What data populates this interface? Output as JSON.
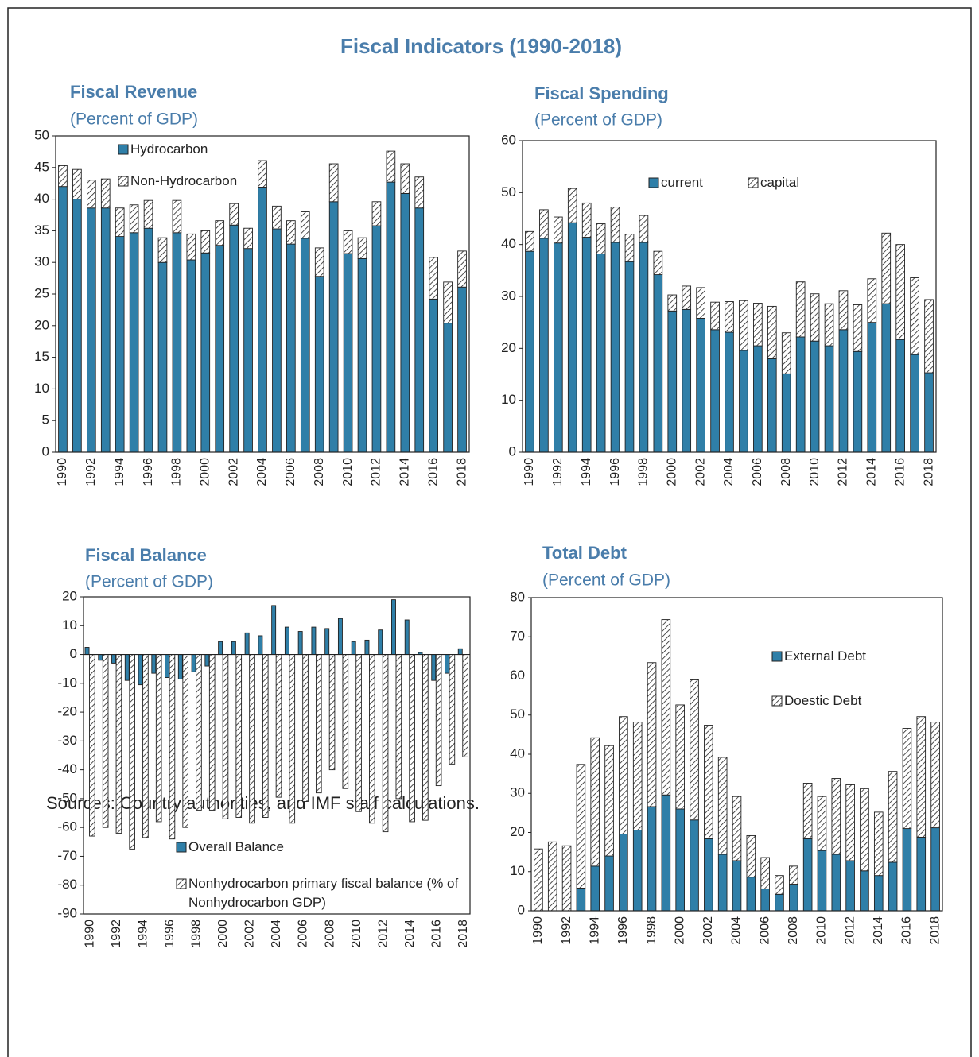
{
  "title": "Fiscal Indicators (1990-2018)",
  "source": "Sources: Country authorities, and IMF staff calculations.",
  "chart_data": [
    {
      "type": "bar",
      "stacked": true,
      "title": "Fiscal Revenue",
      "subtitle": "(Percent of GDP)",
      "categories": [
        "1990",
        null,
        "1992",
        null,
        "1994",
        null,
        "1996",
        null,
        "1998",
        null,
        "2000",
        null,
        "2002",
        null,
        "2004",
        null,
        "2006",
        null,
        "2008",
        null,
        "2010",
        null,
        "2012",
        null,
        "2014",
        null,
        "2016",
        null,
        "2018"
      ],
      "series": [
        {
          "name": "Hydrocarbon",
          "color": "#2f7fa8",
          "values": [
            42,
            40,
            38.6,
            38.6,
            34.1,
            34.7,
            35.4,
            30,
            34.7,
            30.4,
            31.5,
            32.7,
            35.9,
            32.2,
            41.9,
            35.3,
            32.9,
            33.8,
            27.8,
            39.6,
            31.4,
            30.6,
            35.8,
            42.7,
            40.9,
            38.6,
            24.2,
            20.4,
            26.1
          ]
        },
        {
          "name": "Non-Hydrocarbon",
          "color": "#ffffff",
          "hatch": true,
          "values": [
            3.3,
            4.7,
            4.4,
            4.6,
            4.5,
            4.4,
            4.4,
            3.9,
            5.1,
            4.1,
            3.5,
            3.9,
            3.4,
            3.2,
            4.2,
            3.6,
            3.7,
            4.2,
            4.5,
            6,
            3.6,
            3.3,
            3.8,
            4.9,
            4.7,
            4.9,
            6.6,
            6.5,
            5.7
          ]
        }
      ],
      "ylim": [
        0,
        50
      ],
      "yticks": [
        0,
        5,
        10,
        15,
        20,
        25,
        30,
        35,
        40,
        45,
        50
      ]
    },
    {
      "type": "bar",
      "stacked": true,
      "title": "Fiscal Spending",
      "subtitle": "(Percent of GDP)",
      "categories": [
        "1990",
        null,
        "1992",
        null,
        "1994",
        null,
        "1996",
        null,
        "1998",
        null,
        "2000",
        null,
        "2002",
        null,
        "2004",
        null,
        "2006",
        null,
        "2008",
        null,
        "2010",
        null,
        "2012",
        null,
        "2014",
        null,
        "2016",
        null,
        "2018"
      ],
      "series": [
        {
          "name": "current",
          "color": "#2f7fa8",
          "values": [
            38.7,
            41.2,
            40.3,
            44.2,
            41.4,
            38.2,
            40.4,
            36.7,
            40.4,
            34.2,
            27.2,
            27.5,
            25.8,
            23.6,
            23.1,
            19.6,
            20.5,
            18,
            15.1,
            22.2,
            21.4,
            20.5,
            23.6,
            19.4,
            25,
            28.6,
            21.7,
            18.8,
            15.3
          ]
        },
        {
          "name": "capital",
          "color": "#ffffff",
          "hatch": true,
          "values": [
            3.8,
            5.5,
            5,
            6.6,
            6.6,
            5.8,
            6.8,
            5.3,
            5.2,
            4.5,
            3.1,
            4.5,
            5.9,
            5.3,
            5.9,
            9.6,
            8.2,
            10.1,
            7.9,
            10.6,
            9.1,
            8.1,
            7.5,
            9,
            8.4,
            13.6,
            18.3,
            14.8,
            14.1
          ]
        }
      ],
      "ylim": [
        0,
        60
      ],
      "yticks": [
        0,
        10,
        20,
        30,
        40,
        50,
        60
      ]
    },
    {
      "type": "bar",
      "stacked": false,
      "title": "Fiscal Balance",
      "subtitle": "(Percent of GDP)",
      "categories": [
        "1990",
        null,
        "1992",
        null,
        "1994",
        null,
        "1996",
        null,
        "1998",
        null,
        "2000",
        null,
        "2002",
        null,
        "2004",
        null,
        "2006",
        null,
        "2008",
        null,
        "2010",
        null,
        "2012",
        null,
        "2014",
        null,
        "2016",
        null,
        "2018"
      ],
      "series": [
        {
          "name": "Overall Balance",
          "color": "#2f7fa8",
          "values": [
            2.5,
            -2,
            -3,
            -9,
            -10.5,
            -6.5,
            -8,
            -8.5,
            -6,
            -4,
            4.5,
            4.5,
            7.5,
            6.5,
            17,
            9.5,
            8,
            9.5,
            9,
            12.5,
            4.5,
            5,
            8.5,
            19,
            12,
            0.7,
            -9,
            -6.5,
            2
          ]
        },
        {
          "name": "Nonhydrocarbon primary fiscal balance (% of Nonhydrocarbon GDP)",
          "color": "#ffffff",
          "hatch": true,
          "values": [
            -63,
            -60,
            -62,
            -67.5,
            -63.5,
            -58,
            -64,
            -60,
            -54,
            -54,
            -57,
            -56.5,
            -58.5,
            -56.5,
            -49.5,
            -58.5,
            -51,
            -48,
            -40,
            -46.5,
            -54.5,
            -58.5,
            -61.5,
            -50,
            -58,
            -57.5,
            -45.5,
            -38,
            -35.5
          ]
        }
      ],
      "ylim": [
        -90,
        20
      ],
      "yticks": [
        -90,
        -80,
        -70,
        -60,
        -50,
        -40,
        -30,
        -20,
        -10,
        0,
        10,
        20
      ]
    },
    {
      "type": "bar",
      "stacked": true,
      "title": "Total Debt",
      "subtitle": "(Percent of GDP)",
      "categories": [
        "1990",
        null,
        "1992",
        null,
        "1994",
        null,
        "1996",
        null,
        "1998",
        null,
        "2000",
        null,
        "2002",
        null,
        "2004",
        null,
        "2006",
        null,
        "2008",
        null,
        "2010",
        null,
        "2012",
        null,
        "2014",
        null,
        "2016",
        null,
        "2018"
      ],
      "series": [
        {
          "name": "External Debt",
          "color": "#2f7fa8",
          "values": [
            0,
            0,
            0,
            5.8,
            11.4,
            14,
            19.6,
            20.6,
            26.6,
            29.6,
            26,
            23.2,
            18.4,
            14.4,
            12.8,
            8.6,
            5.6,
            4.2,
            6.8,
            18.4,
            15.4,
            14.4,
            12.8,
            10.2,
            9,
            12.4,
            21,
            18.8,
            21.2
          ]
        },
        {
          "name": "Doestic Debt",
          "color": "#ffffff",
          "hatch": true,
          "values": [
            15.8,
            17.6,
            16.6,
            31.6,
            32.8,
            28.2,
            30,
            27.6,
            36.8,
            44.8,
            26.6,
            35.8,
            29,
            24.8,
            16.4,
            10.6,
            8,
            4.8,
            4.6,
            14.2,
            13.8,
            19.4,
            19.4,
            21,
            16.2,
            23.2,
            25.6,
            30.8,
            27
          ]
        }
      ],
      "ylim": [
        0,
        80
      ],
      "yticks": [
        0,
        10,
        20,
        30,
        40,
        50,
        60,
        70,
        80
      ]
    }
  ]
}
